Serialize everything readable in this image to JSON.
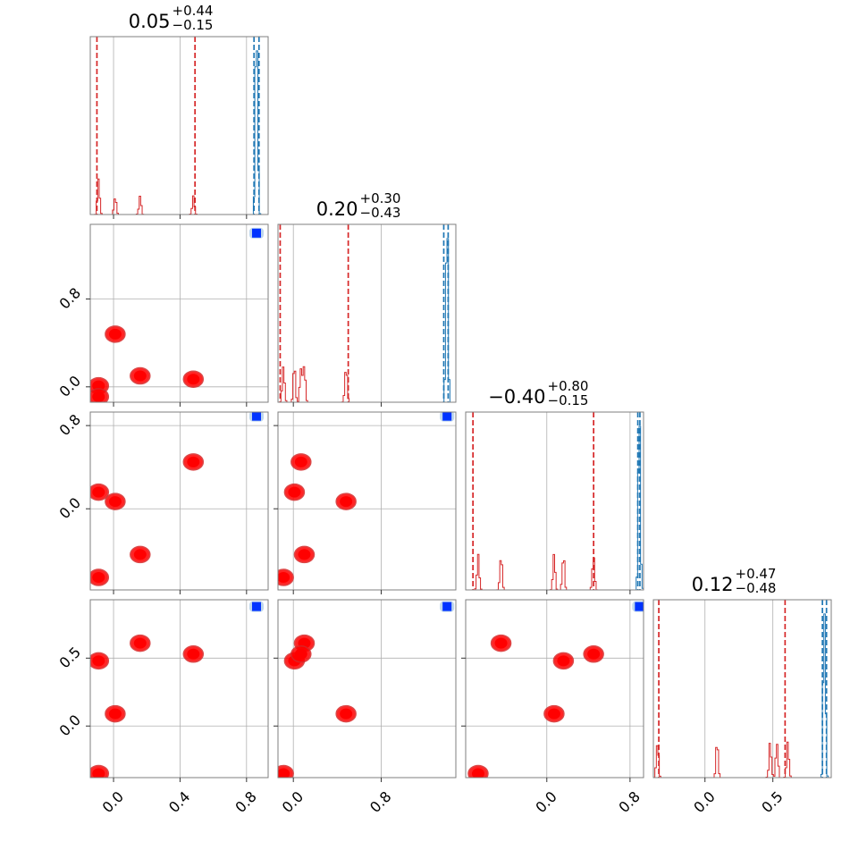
{
  "chart_data": {
    "type": "corner",
    "parameters": 4,
    "titles": [
      {
        "main": "0.05",
        "sup": "+0.44",
        "sub": "−0.15"
      },
      {
        "main": "0.20",
        "sup": "+0.30",
        "sub": "−0.43"
      },
      {
        "main": "−0.40",
        "sup": "+0.80",
        "sub": "−0.15"
      },
      {
        "main": "0.12",
        "sup": "+0.47",
        "sub": "−0.48"
      }
    ],
    "axis_ranges": [
      [
        -0.14,
        0.93
      ],
      [
        -0.14,
        1.48
      ],
      [
        -0.78,
        0.93
      ],
      [
        -0.38,
        0.93
      ]
    ],
    "x_ticks": [
      {
        "values": [
          0.0,
          0.4,
          0.8
        ],
        "labels": [
          "0.0",
          "0.4",
          "0.8"
        ]
      },
      {
        "values": [
          0.0,
          0.8
        ],
        "labels": [
          "0.0",
          "0.8"
        ]
      },
      {
        "values": [
          0.0,
          0.8
        ],
        "labels": [
          "0.0",
          "0.8"
        ]
      },
      {
        "values": [
          0.0,
          0.5
        ],
        "labels": [
          "0.0",
          "0.5"
        ]
      }
    ],
    "y_ticks": [
      null,
      {
        "values": [
          0.0,
          0.8
        ],
        "labels": [
          "0.0",
          "0.8"
        ]
      },
      {
        "values": [
          0.0,
          0.8
        ],
        "labels": [
          "0.0",
          "0.8"
        ]
      },
      {
        "values": [
          0.0,
          0.5
        ],
        "labels": [
          "0.0",
          "0.5"
        ]
      }
    ],
    "grid": true,
    "series": [
      {
        "color": "#d62728",
        "points": [
          [
            -0.09,
            0.01,
            0.16,
            0.48
          ],
          [
            0.01,
            0.48,
            0.07,
            0.09
          ],
          [
            0.16,
            0.1,
            -0.44,
            0.61
          ],
          [
            0.48,
            0.07,
            0.45,
            0.53
          ],
          [
            -0.09,
            -0.09,
            -0.66,
            -0.35
          ]
        ],
        "quantile_lines": [
          [
            -0.1,
            0.49
          ],
          [
            -0.12,
            0.5
          ],
          [
            -0.71,
            0.45
          ],
          [
            -0.34,
            0.59
          ]
        ]
      },
      {
        "color": "#1f77b4",
        "points": [
          [
            0.86,
            1.4,
            0.89,
            0.88
          ]
        ],
        "quantile_lines": [
          [
            0.845,
            0.875
          ],
          [
            1.37,
            1.41
          ],
          [
            0.875,
            0.895
          ],
          [
            0.865,
            0.895
          ]
        ]
      }
    ]
  }
}
